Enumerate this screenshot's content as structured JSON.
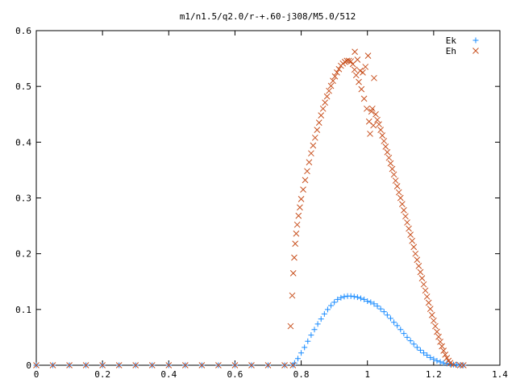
{
  "chart_data": {
    "type": "scatter",
    "title": "m1/n1.5/q2.0/r-+.60-j308/M5.0/512",
    "xlabel": "",
    "ylabel": "",
    "xlim": [
      0,
      1.4
    ],
    "ylim": [
      0,
      0.6
    ],
    "xticks": [
      "0",
      "0.2",
      "0.4",
      "0.6",
      "0.8",
      "1",
      "1.2",
      "1.4"
    ],
    "yticks": [
      "0",
      "0.1",
      "0.2",
      "0.3",
      "0.4",
      "0.5",
      "0.6"
    ],
    "legend_position": "top-right",
    "grid": false,
    "series": [
      {
        "name": "Ek",
        "marker": "plus",
        "color": "#1a8cff",
        "points": [
          [
            0.0,
            0.0
          ],
          [
            0.05,
            0.0
          ],
          [
            0.1,
            0.0
          ],
          [
            0.15,
            0.0
          ],
          [
            0.2,
            0.0
          ],
          [
            0.25,
            0.0
          ],
          [
            0.3,
            0.0
          ],
          [
            0.35,
            0.0
          ],
          [
            0.4,
            0.0
          ],
          [
            0.45,
            0.0
          ],
          [
            0.5,
            0.0
          ],
          [
            0.55,
            0.0
          ],
          [
            0.6,
            0.0
          ],
          [
            0.65,
            0.0
          ],
          [
            0.7,
            0.0
          ],
          [
            0.75,
            0.0
          ],
          [
            0.775,
            0.0
          ],
          [
            0.78,
            0.004
          ],
          [
            0.79,
            0.012
          ],
          [
            0.8,
            0.022
          ],
          [
            0.81,
            0.032
          ],
          [
            0.82,
            0.043
          ],
          [
            0.83,
            0.054
          ],
          [
            0.84,
            0.064
          ],
          [
            0.85,
            0.074
          ],
          [
            0.86,
            0.083
          ],
          [
            0.87,
            0.092
          ],
          [
            0.88,
            0.1
          ],
          [
            0.89,
            0.107
          ],
          [
            0.9,
            0.113
          ],
          [
            0.91,
            0.118
          ],
          [
            0.92,
            0.121
          ],
          [
            0.93,
            0.123
          ],
          [
            0.94,
            0.124
          ],
          [
            0.95,
            0.124
          ],
          [
            0.96,
            0.123
          ],
          [
            0.97,
            0.122
          ],
          [
            0.98,
            0.12
          ],
          [
            0.99,
            0.118
          ],
          [
            1.0,
            0.115
          ],
          [
            1.01,
            0.113
          ],
          [
            1.02,
            0.11
          ],
          [
            1.03,
            0.106
          ],
          [
            1.04,
            0.101
          ],
          [
            1.05,
            0.096
          ],
          [
            1.06,
            0.09
          ],
          [
            1.07,
            0.084
          ],
          [
            1.08,
            0.077
          ],
          [
            1.09,
            0.071
          ],
          [
            1.1,
            0.064
          ],
          [
            1.11,
            0.057
          ],
          [
            1.12,
            0.05
          ],
          [
            1.13,
            0.044
          ],
          [
            1.14,
            0.038
          ],
          [
            1.15,
            0.032
          ],
          [
            1.16,
            0.027
          ],
          [
            1.17,
            0.022
          ],
          [
            1.18,
            0.018
          ],
          [
            1.19,
            0.014
          ],
          [
            1.2,
            0.011
          ],
          [
            1.21,
            0.008
          ],
          [
            1.22,
            0.006
          ],
          [
            1.23,
            0.004
          ],
          [
            1.24,
            0.003
          ],
          [
            1.25,
            0.002
          ],
          [
            1.26,
            0.001
          ],
          [
            1.27,
            0.001
          ],
          [
            1.28,
            0.0
          ],
          [
            1.29,
            0.0
          ]
        ]
      },
      {
        "name": "Eh",
        "marker": "x",
        "color": "#c8501e",
        "points": [
          [
            0.0,
            0.0
          ],
          [
            0.05,
            0.0
          ],
          [
            0.1,
            0.0
          ],
          [
            0.15,
            0.0
          ],
          [
            0.2,
            0.0
          ],
          [
            0.25,
            0.0
          ],
          [
            0.3,
            0.0
          ],
          [
            0.35,
            0.0
          ],
          [
            0.4,
            0.0
          ],
          [
            0.45,
            0.0
          ],
          [
            0.5,
            0.0
          ],
          [
            0.55,
            0.0
          ],
          [
            0.6,
            0.0
          ],
          [
            0.65,
            0.0
          ],
          [
            0.7,
            0.0
          ],
          [
            0.75,
            0.0
          ],
          [
            0.775,
            0.0
          ],
          [
            0.768,
            0.07
          ],
          [
            0.773,
            0.125
          ],
          [
            0.776,
            0.165
          ],
          [
            0.779,
            0.193
          ],
          [
            0.782,
            0.218
          ],
          [
            0.785,
            0.236
          ],
          [
            0.788,
            0.252
          ],
          [
            0.792,
            0.268
          ],
          [
            0.796,
            0.283
          ],
          [
            0.8,
            0.298
          ],
          [
            0.806,
            0.315
          ],
          [
            0.812,
            0.332
          ],
          [
            0.818,
            0.348
          ],
          [
            0.824,
            0.364
          ],
          [
            0.83,
            0.38
          ],
          [
            0.836,
            0.394
          ],
          [
            0.842,
            0.408
          ],
          [
            0.848,
            0.422
          ],
          [
            0.854,
            0.435
          ],
          [
            0.86,
            0.448
          ],
          [
            0.866,
            0.46
          ],
          [
            0.872,
            0.471
          ],
          [
            0.878,
            0.482
          ],
          [
            0.884,
            0.492
          ],
          [
            0.89,
            0.501
          ],
          [
            0.896,
            0.51
          ],
          [
            0.902,
            0.518
          ],
          [
            0.908,
            0.525
          ],
          [
            0.914,
            0.531
          ],
          [
            0.92,
            0.537
          ],
          [
            0.926,
            0.541
          ],
          [
            0.932,
            0.544
          ],
          [
            0.938,
            0.546
          ],
          [
            0.944,
            0.546
          ],
          [
            0.95,
            0.545
          ],
          [
            0.956,
            0.54
          ],
          [
            0.961,
            0.53
          ],
          [
            0.962,
            0.562
          ],
          [
            0.966,
            0.52
          ],
          [
            0.97,
            0.548
          ],
          [
            0.974,
            0.508
          ],
          [
            0.978,
            0.528
          ],
          [
            0.982,
            0.495
          ],
          [
            0.986,
            0.525
          ],
          [
            0.99,
            0.478
          ],
          [
            0.994,
            0.535
          ],
          [
            0.998,
            0.46
          ],
          [
            1.002,
            0.555
          ],
          [
            1.005,
            0.437
          ],
          [
            1.008,
            0.415
          ],
          [
            1.012,
            0.455
          ],
          [
            1.015,
            0.46
          ],
          [
            1.018,
            0.43
          ],
          [
            1.02,
            0.515
          ],
          [
            1.025,
            0.45
          ],
          [
            1.03,
            0.44
          ],
          [
            1.035,
            0.432
          ],
          [
            1.04,
            0.422
          ],
          [
            1.045,
            0.412
          ],
          [
            1.05,
            0.402
          ],
          [
            1.055,
            0.392
          ],
          [
            1.06,
            0.382
          ],
          [
            1.065,
            0.372
          ],
          [
            1.07,
            0.362
          ],
          [
            1.075,
            0.352
          ],
          [
            1.08,
            0.342
          ],
          [
            1.085,
            0.331
          ],
          [
            1.09,
            0.321
          ],
          [
            1.095,
            0.31
          ],
          [
            1.1,
            0.3
          ],
          [
            1.105,
            0.289
          ],
          [
            1.11,
            0.278
          ],
          [
            1.115,
            0.267
          ],
          [
            1.12,
            0.256
          ],
          [
            1.125,
            0.245
          ],
          [
            1.13,
            0.234
          ],
          [
            1.135,
            0.223
          ],
          [
            1.14,
            0.212
          ],
          [
            1.145,
            0.2
          ],
          [
            1.15,
            0.189
          ],
          [
            1.155,
            0.178
          ],
          [
            1.16,
            0.167
          ],
          [
            1.165,
            0.156
          ],
          [
            1.17,
            0.145
          ],
          [
            1.175,
            0.134
          ],
          [
            1.18,
            0.123
          ],
          [
            1.185,
            0.112
          ],
          [
            1.19,
            0.101
          ],
          [
            1.195,
            0.09
          ],
          [
            1.2,
            0.08
          ],
          [
            1.205,
            0.07
          ],
          [
            1.21,
            0.06
          ],
          [
            1.215,
            0.051
          ],
          [
            1.22,
            0.042
          ],
          [
            1.225,
            0.034
          ],
          [
            1.23,
            0.026
          ],
          [
            1.235,
            0.019
          ],
          [
            1.24,
            0.013
          ],
          [
            1.245,
            0.008
          ],
          [
            1.25,
            0.004
          ],
          [
            1.26,
            0.001
          ],
          [
            1.28,
            0.0
          ],
          [
            1.29,
            0.0
          ]
        ]
      }
    ]
  }
}
